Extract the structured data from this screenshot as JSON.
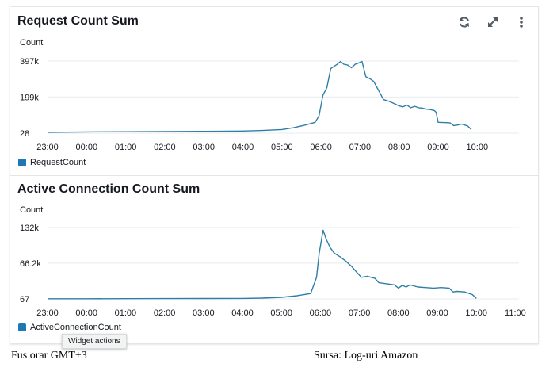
{
  "widgets": [
    {
      "title": "Request Count Sum",
      "ylabel": "Count",
      "legend": "RequestCount",
      "actions": [
        "refresh-icon",
        "expand-icon",
        "more-vertical-icon"
      ]
    },
    {
      "title": "Active Connection Count Sum",
      "ylabel": "Count",
      "legend": "ActiveConnectionCount"
    }
  ],
  "tooltip": "Widget actions",
  "captions": {
    "left": "Fus orar GMT+3",
    "right": "Sursa: Log-uri Amazon"
  },
  "colors": {
    "series": "#2e7ea6",
    "legend": "#1f77b4",
    "grid": "#e9ebed"
  },
  "chart_data": [
    {
      "type": "line",
      "title": "Request Count Sum",
      "ylabel": "Count",
      "xlabel": "",
      "x_ticks": [
        "23:00",
        "00:00",
        "01:00",
        "02:00",
        "03:00",
        "04:00",
        "05:00",
        "06:00",
        "07:00",
        "08:00",
        "09:00",
        "10:00"
      ],
      "y_ticks": [
        "397k",
        "199k",
        "28"
      ],
      "y_tick_values": [
        397000,
        199000,
        28
      ],
      "xlim_hours": [
        0,
        11.8
      ],
      "ylim": [
        28,
        397000
      ],
      "grid": true,
      "legend_position": "bottom-left",
      "series": [
        {
          "name": "RequestCount",
          "x": [
            0,
            1,
            2,
            3,
            4,
            5,
            5.5,
            6,
            6.3,
            6.6,
            6.85,
            6.95,
            7.05,
            7.15,
            7.25,
            7.35,
            7.42,
            7.5,
            7.58,
            7.68,
            7.78,
            7.88,
            7.95,
            8.05,
            8.15,
            8.25,
            8.35,
            8.45,
            8.6,
            8.75,
            8.9,
            9.0,
            9.1,
            9.2,
            9.3,
            9.4,
            9.5,
            9.6,
            9.7,
            9.8,
            9.9,
            9.95,
            10.0,
            10.2,
            10.3,
            10.4,
            10.5,
            10.6,
            10.75,
            10.85
          ],
          "values": [
            5000,
            7000,
            8000,
            9000,
            10000,
            12000,
            15000,
            20000,
            30000,
            45000,
            60000,
            95000,
            210000,
            250000,
            355000,
            370000,
            380000,
            395000,
            380000,
            375000,
            360000,
            380000,
            385000,
            395000,
            310000,
            300000,
            285000,
            245000,
            185000,
            175000,
            160000,
            150000,
            145000,
            155000,
            140000,
            148000,
            140000,
            138000,
            132000,
            130000,
            125000,
            115000,
            60000,
            58000,
            57000,
            42000,
            45000,
            50000,
            40000,
            20000
          ]
        }
      ]
    },
    {
      "type": "line",
      "title": "Active Connection Count Sum",
      "ylabel": "Count",
      "xlabel": "",
      "x_ticks": [
        "23:00",
        "00:00",
        "01:00",
        "02:00",
        "03:00",
        "04:00",
        "05:00",
        "06:00",
        "07:00",
        "08:00",
        "09:00",
        "10:00",
        "11:00"
      ],
      "y_ticks": [
        "132k",
        "66.2k",
        "67"
      ],
      "y_tick_values": [
        132000,
        66200,
        67
      ],
      "xlim_hours": [
        0,
        12
      ],
      "ylim": [
        67,
        132000
      ],
      "grid": true,
      "legend_position": "bottom-left",
      "series": [
        {
          "name": "ActiveConnectionCount",
          "x": [
            0,
            1,
            2,
            3,
            4,
            5,
            5.5,
            6,
            6.4,
            6.75,
            6.9,
            6.97,
            7.07,
            7.15,
            7.25,
            7.35,
            7.5,
            7.65,
            7.8,
            7.95,
            8.05,
            8.2,
            8.4,
            8.5,
            8.7,
            8.9,
            9.0,
            9.1,
            9.2,
            9.3,
            9.5,
            9.7,
            9.9,
            10.1,
            10.3,
            10.4,
            10.5,
            10.7,
            10.9,
            11.0
          ],
          "values": [
            300,
            400,
            500,
            600,
            800,
            1000,
            1500,
            3000,
            6000,
            10000,
            40000,
            85000,
            127000,
            110000,
            95000,
            85000,
            78000,
            70000,
            60000,
            48000,
            40000,
            42000,
            38000,
            30000,
            28000,
            26000,
            20000,
            25000,
            22000,
            26000,
            22000,
            21000,
            20000,
            21000,
            20000,
            13000,
            14000,
            13000,
            8000,
            1000
          ]
        }
      ]
    }
  ]
}
